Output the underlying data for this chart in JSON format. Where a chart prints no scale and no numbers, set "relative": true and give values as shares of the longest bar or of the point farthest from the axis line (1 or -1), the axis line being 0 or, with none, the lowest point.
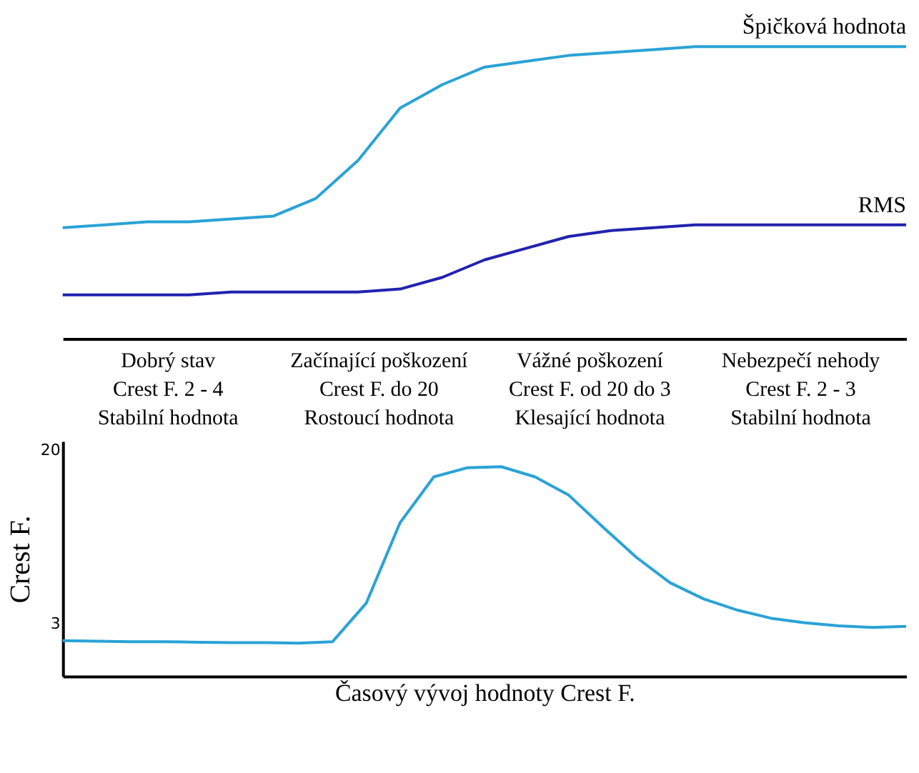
{
  "chart_data": [
    {
      "type": "line",
      "relative": true,
      "tick_labels": false,
      "categories": [
        null,
        null,
        null,
        null,
        null,
        null,
        null,
        null,
        null,
        null,
        null,
        null,
        null,
        null,
        null,
        null,
        null,
        null,
        null,
        null,
        null
      ],
      "series": [
        {
          "name": "Špičková hodnota",
          "color": "#29a3d6",
          "values": [
            0.38,
            0.39,
            0.4,
            0.4,
            0.41,
            0.42,
            0.48,
            0.61,
            0.79,
            0.87,
            0.93,
            0.95,
            0.97,
            0.98,
            0.99,
            1.0,
            1.0,
            1.0,
            1.0,
            1.0,
            1.0
          ]
        },
        {
          "name": "RMS",
          "color": "#2222b0",
          "values": [
            0.15,
            0.15,
            0.15,
            0.15,
            0.16,
            0.16,
            0.16,
            0.16,
            0.17,
            0.21,
            0.27,
            0.31,
            0.35,
            0.37,
            0.38,
            0.39,
            0.39,
            0.39,
            0.39,
            0.39,
            0.39
          ]
        }
      ],
      "annotations": [
        "Dobrý stav\nCrest F. 2 - 4\nStabilní hodnota",
        "Začínající poškození\nCrest F. do 20\nRostoucí hodnota",
        "Vážné poškození\nCrest F. od 20 do 3\nKlesající hodnota",
        "Nebezpečí nehody\nCrest F. 2 - 3\nStabilní hodnota"
      ]
    },
    {
      "type": "line",
      "ylim": [
        -2.2,
        20.9
      ],
      "yticks": [
        3,
        20
      ],
      "tick_labels": "y",
      "ylabel": "Crest F.",
      "xlabel": "Časový vývoj hodnoty Crest F.",
      "categories": [
        null,
        null,
        null,
        null,
        null,
        null,
        null,
        null,
        null,
        null,
        null,
        null,
        null,
        null,
        null,
        null,
        null,
        null,
        null,
        null,
        null,
        null,
        null,
        null,
        null,
        null
      ],
      "series": [
        {
          "color": "#29a3d6",
          "values": [
            1.3,
            1.25,
            1.2,
            1.2,
            1.15,
            1.1,
            1.1,
            1.05,
            1.2,
            5.0,
            12.9,
            17.4,
            18.3,
            18.4,
            17.4,
            15.6,
            12.5,
            9.5,
            7.0,
            5.4,
            4.3,
            3.5,
            3.05,
            2.75,
            2.6,
            2.7
          ]
        }
      ]
    }
  ]
}
